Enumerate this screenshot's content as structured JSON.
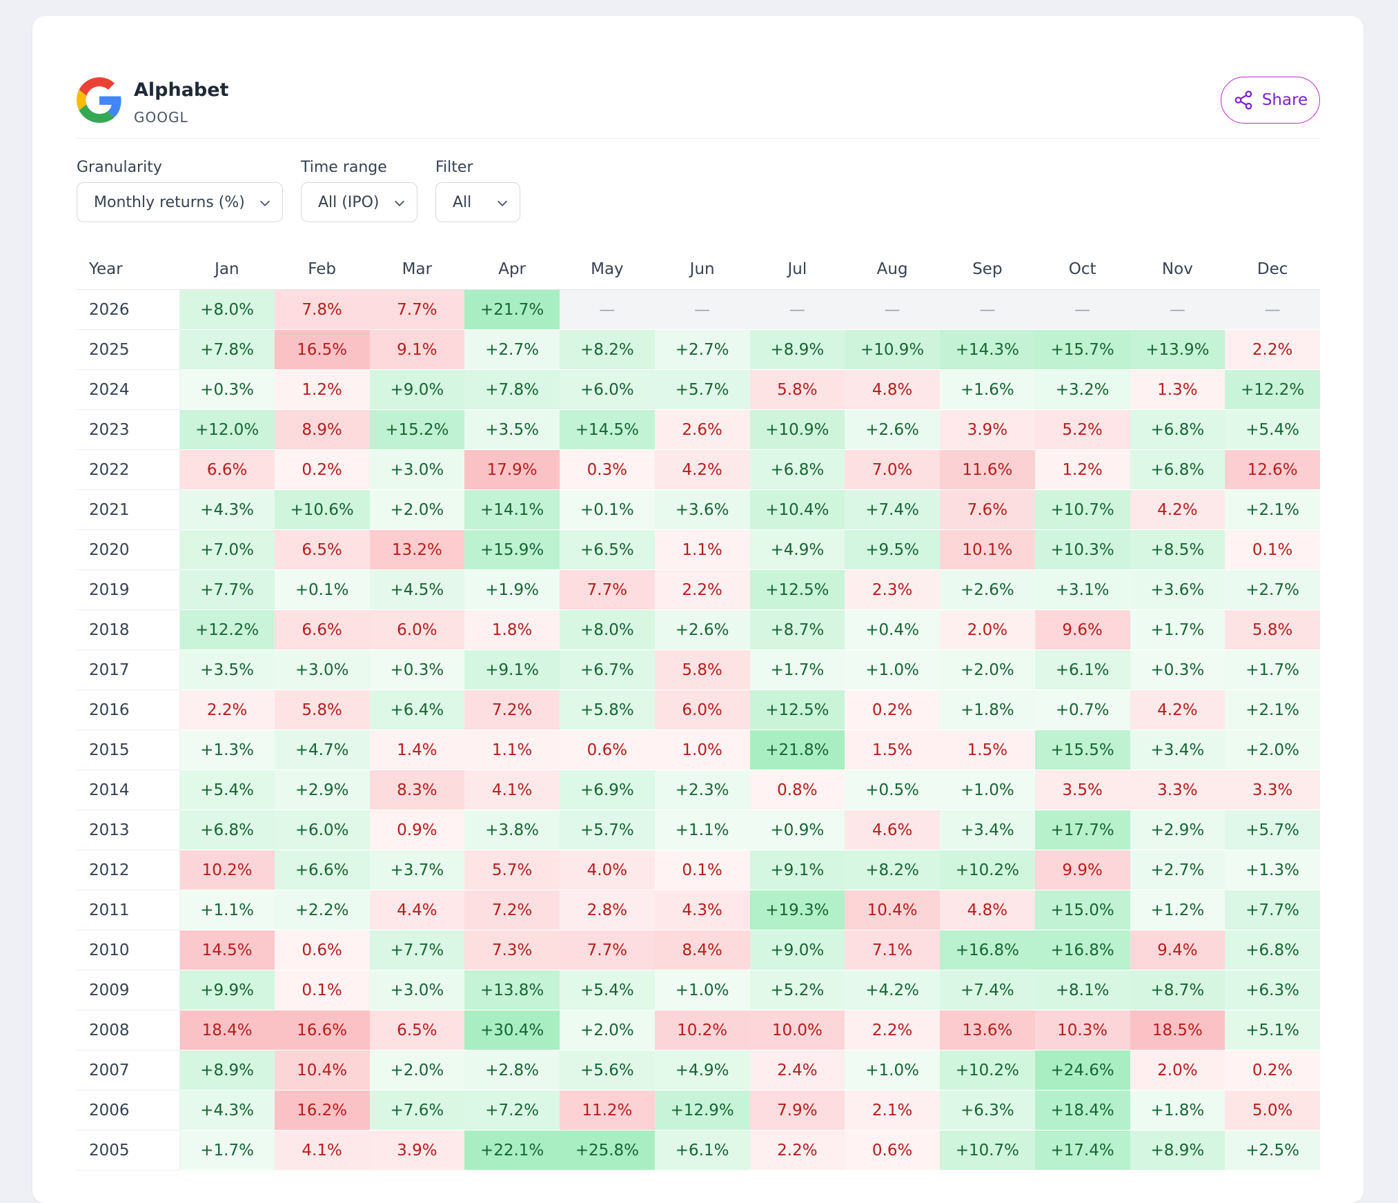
{
  "company": {
    "name": "Alphabet",
    "ticker": "GOOGL"
  },
  "share_label": "Share",
  "controls": {
    "granularity": {
      "label": "Granularity",
      "value": "Monthly returns (%)"
    },
    "time_range": {
      "label": "Time range",
      "value": "All (IPO)"
    },
    "filter": {
      "label": "Filter",
      "value": "All"
    }
  },
  "colors": {
    "accent": "#c026d3",
    "positive_text": "#166534",
    "negative_text": "#b91c1c",
    "empty_cell": "#f3f4f6"
  },
  "table": {
    "headers": [
      "Year",
      "Jan",
      "Feb",
      "Mar",
      "Apr",
      "May",
      "Jun",
      "Jul",
      "Aug",
      "Sep",
      "Oct",
      "Nov",
      "Dec"
    ],
    "rows": [
      {
        "year": "2026",
        "values": [
          "+8.0%",
          "7.8%",
          "7.7%",
          "+21.7%",
          "—",
          "—",
          "—",
          "—",
          "—",
          "—",
          "—",
          "—"
        ]
      },
      {
        "year": "2025",
        "values": [
          "+7.8%",
          "16.5%",
          "9.1%",
          "+2.7%",
          "+8.2%",
          "+2.7%",
          "+8.9%",
          "+10.9%",
          "+14.3%",
          "+15.7%",
          "+13.9%",
          "2.2%"
        ]
      },
      {
        "year": "2024",
        "values": [
          "+0.3%",
          "1.2%",
          "+9.0%",
          "+7.8%",
          "+6.0%",
          "+5.7%",
          "5.8%",
          "4.8%",
          "+1.6%",
          "+3.2%",
          "1.3%",
          "+12.2%"
        ]
      },
      {
        "year": "2023",
        "values": [
          "+12.0%",
          "8.9%",
          "+15.2%",
          "+3.5%",
          "+14.5%",
          "2.6%",
          "+10.9%",
          "+2.6%",
          "3.9%",
          "5.2%",
          "+6.8%",
          "+5.4%"
        ]
      },
      {
        "year": "2022",
        "values": [
          "6.6%",
          "0.2%",
          "+3.0%",
          "17.9%",
          "0.3%",
          "4.2%",
          "+6.8%",
          "7.0%",
          "11.6%",
          "1.2%",
          "+6.8%",
          "12.6%"
        ]
      },
      {
        "year": "2021",
        "values": [
          "+4.3%",
          "+10.6%",
          "+2.0%",
          "+14.1%",
          "+0.1%",
          "+3.6%",
          "+10.4%",
          "+7.4%",
          "7.6%",
          "+10.7%",
          "4.2%",
          "+2.1%"
        ]
      },
      {
        "year": "2020",
        "values": [
          "+7.0%",
          "6.5%",
          "13.2%",
          "+15.9%",
          "+6.5%",
          "1.1%",
          "+4.9%",
          "+9.5%",
          "10.1%",
          "+10.3%",
          "+8.5%",
          "0.1%"
        ]
      },
      {
        "year": "2019",
        "values": [
          "+7.7%",
          "+0.1%",
          "+4.5%",
          "+1.9%",
          "7.7%",
          "2.2%",
          "+12.5%",
          "2.3%",
          "+2.6%",
          "+3.1%",
          "+3.6%",
          "+2.7%"
        ]
      },
      {
        "year": "2018",
        "values": [
          "+12.2%",
          "6.6%",
          "6.0%",
          "1.8%",
          "+8.0%",
          "+2.6%",
          "+8.7%",
          "+0.4%",
          "2.0%",
          "9.6%",
          "+1.7%",
          "5.8%"
        ]
      },
      {
        "year": "2017",
        "values": [
          "+3.5%",
          "+3.0%",
          "+0.3%",
          "+9.1%",
          "+6.7%",
          "5.8%",
          "+1.7%",
          "+1.0%",
          "+2.0%",
          "+6.1%",
          "+0.3%",
          "+1.7%"
        ]
      },
      {
        "year": "2016",
        "values": [
          "2.2%",
          "5.8%",
          "+6.4%",
          "7.2%",
          "+5.8%",
          "6.0%",
          "+12.5%",
          "0.2%",
          "+1.8%",
          "+0.7%",
          "4.2%",
          "+2.1%"
        ]
      },
      {
        "year": "2015",
        "values": [
          "+1.3%",
          "+4.7%",
          "1.4%",
          "1.1%",
          "0.6%",
          "1.0%",
          "+21.8%",
          "1.5%",
          "1.5%",
          "+15.5%",
          "+3.4%",
          "+2.0%"
        ]
      },
      {
        "year": "2014",
        "values": [
          "+5.4%",
          "+2.9%",
          "8.3%",
          "4.1%",
          "+6.9%",
          "+2.3%",
          "0.8%",
          "+0.5%",
          "+1.0%",
          "3.5%",
          "3.3%",
          "3.3%"
        ]
      },
      {
        "year": "2013",
        "values": [
          "+6.8%",
          "+6.0%",
          "0.9%",
          "+3.8%",
          "+5.7%",
          "+1.1%",
          "+0.9%",
          "4.6%",
          "+3.4%",
          "+17.7%",
          "+2.9%",
          "+5.7%"
        ]
      },
      {
        "year": "2012",
        "values": [
          "10.2%",
          "+6.6%",
          "+3.7%",
          "5.7%",
          "4.0%",
          "0.1%",
          "+9.1%",
          "+8.2%",
          "+10.2%",
          "9.9%",
          "+2.7%",
          "+1.3%"
        ]
      },
      {
        "year": "2011",
        "values": [
          "+1.1%",
          "+2.2%",
          "4.4%",
          "7.2%",
          "2.8%",
          "4.3%",
          "+19.3%",
          "10.4%",
          "4.8%",
          "+15.0%",
          "+1.2%",
          "+7.7%"
        ]
      },
      {
        "year": "2010",
        "values": [
          "14.5%",
          "0.6%",
          "+7.7%",
          "7.3%",
          "7.7%",
          "8.4%",
          "+9.0%",
          "7.1%",
          "+16.8%",
          "+16.8%",
          "9.4%",
          "+6.8%"
        ]
      },
      {
        "year": "2009",
        "values": [
          "+9.9%",
          "0.1%",
          "+3.0%",
          "+13.8%",
          "+5.4%",
          "+1.0%",
          "+5.2%",
          "+4.2%",
          "+7.4%",
          "+8.1%",
          "+8.7%",
          "+6.3%"
        ]
      },
      {
        "year": "2008",
        "values": [
          "18.4%",
          "16.6%",
          "6.5%",
          "+30.4%",
          "+2.0%",
          "10.2%",
          "10.0%",
          "2.2%",
          "13.6%",
          "10.3%",
          "18.5%",
          "+5.1%"
        ]
      },
      {
        "year": "2007",
        "values": [
          "+8.9%",
          "10.4%",
          "+2.0%",
          "+2.8%",
          "+5.6%",
          "+4.9%",
          "2.4%",
          "+1.0%",
          "+10.2%",
          "+24.6%",
          "2.0%",
          "0.2%"
        ]
      },
      {
        "year": "2006",
        "values": [
          "+4.3%",
          "16.2%",
          "+7.6%",
          "+7.2%",
          "11.2%",
          "+12.9%",
          "7.9%",
          "2.1%",
          "+6.3%",
          "+18.4%",
          "+1.8%",
          "5.0%"
        ]
      },
      {
        "year": "2005",
        "values": [
          "+1.7%",
          "4.1%",
          "3.9%",
          "+22.1%",
          "+25.8%",
          "+6.1%",
          "2.2%",
          "0.6%",
          "+10.7%",
          "+17.4%",
          "+8.9%",
          "+2.5%"
        ]
      }
    ]
  }
}
